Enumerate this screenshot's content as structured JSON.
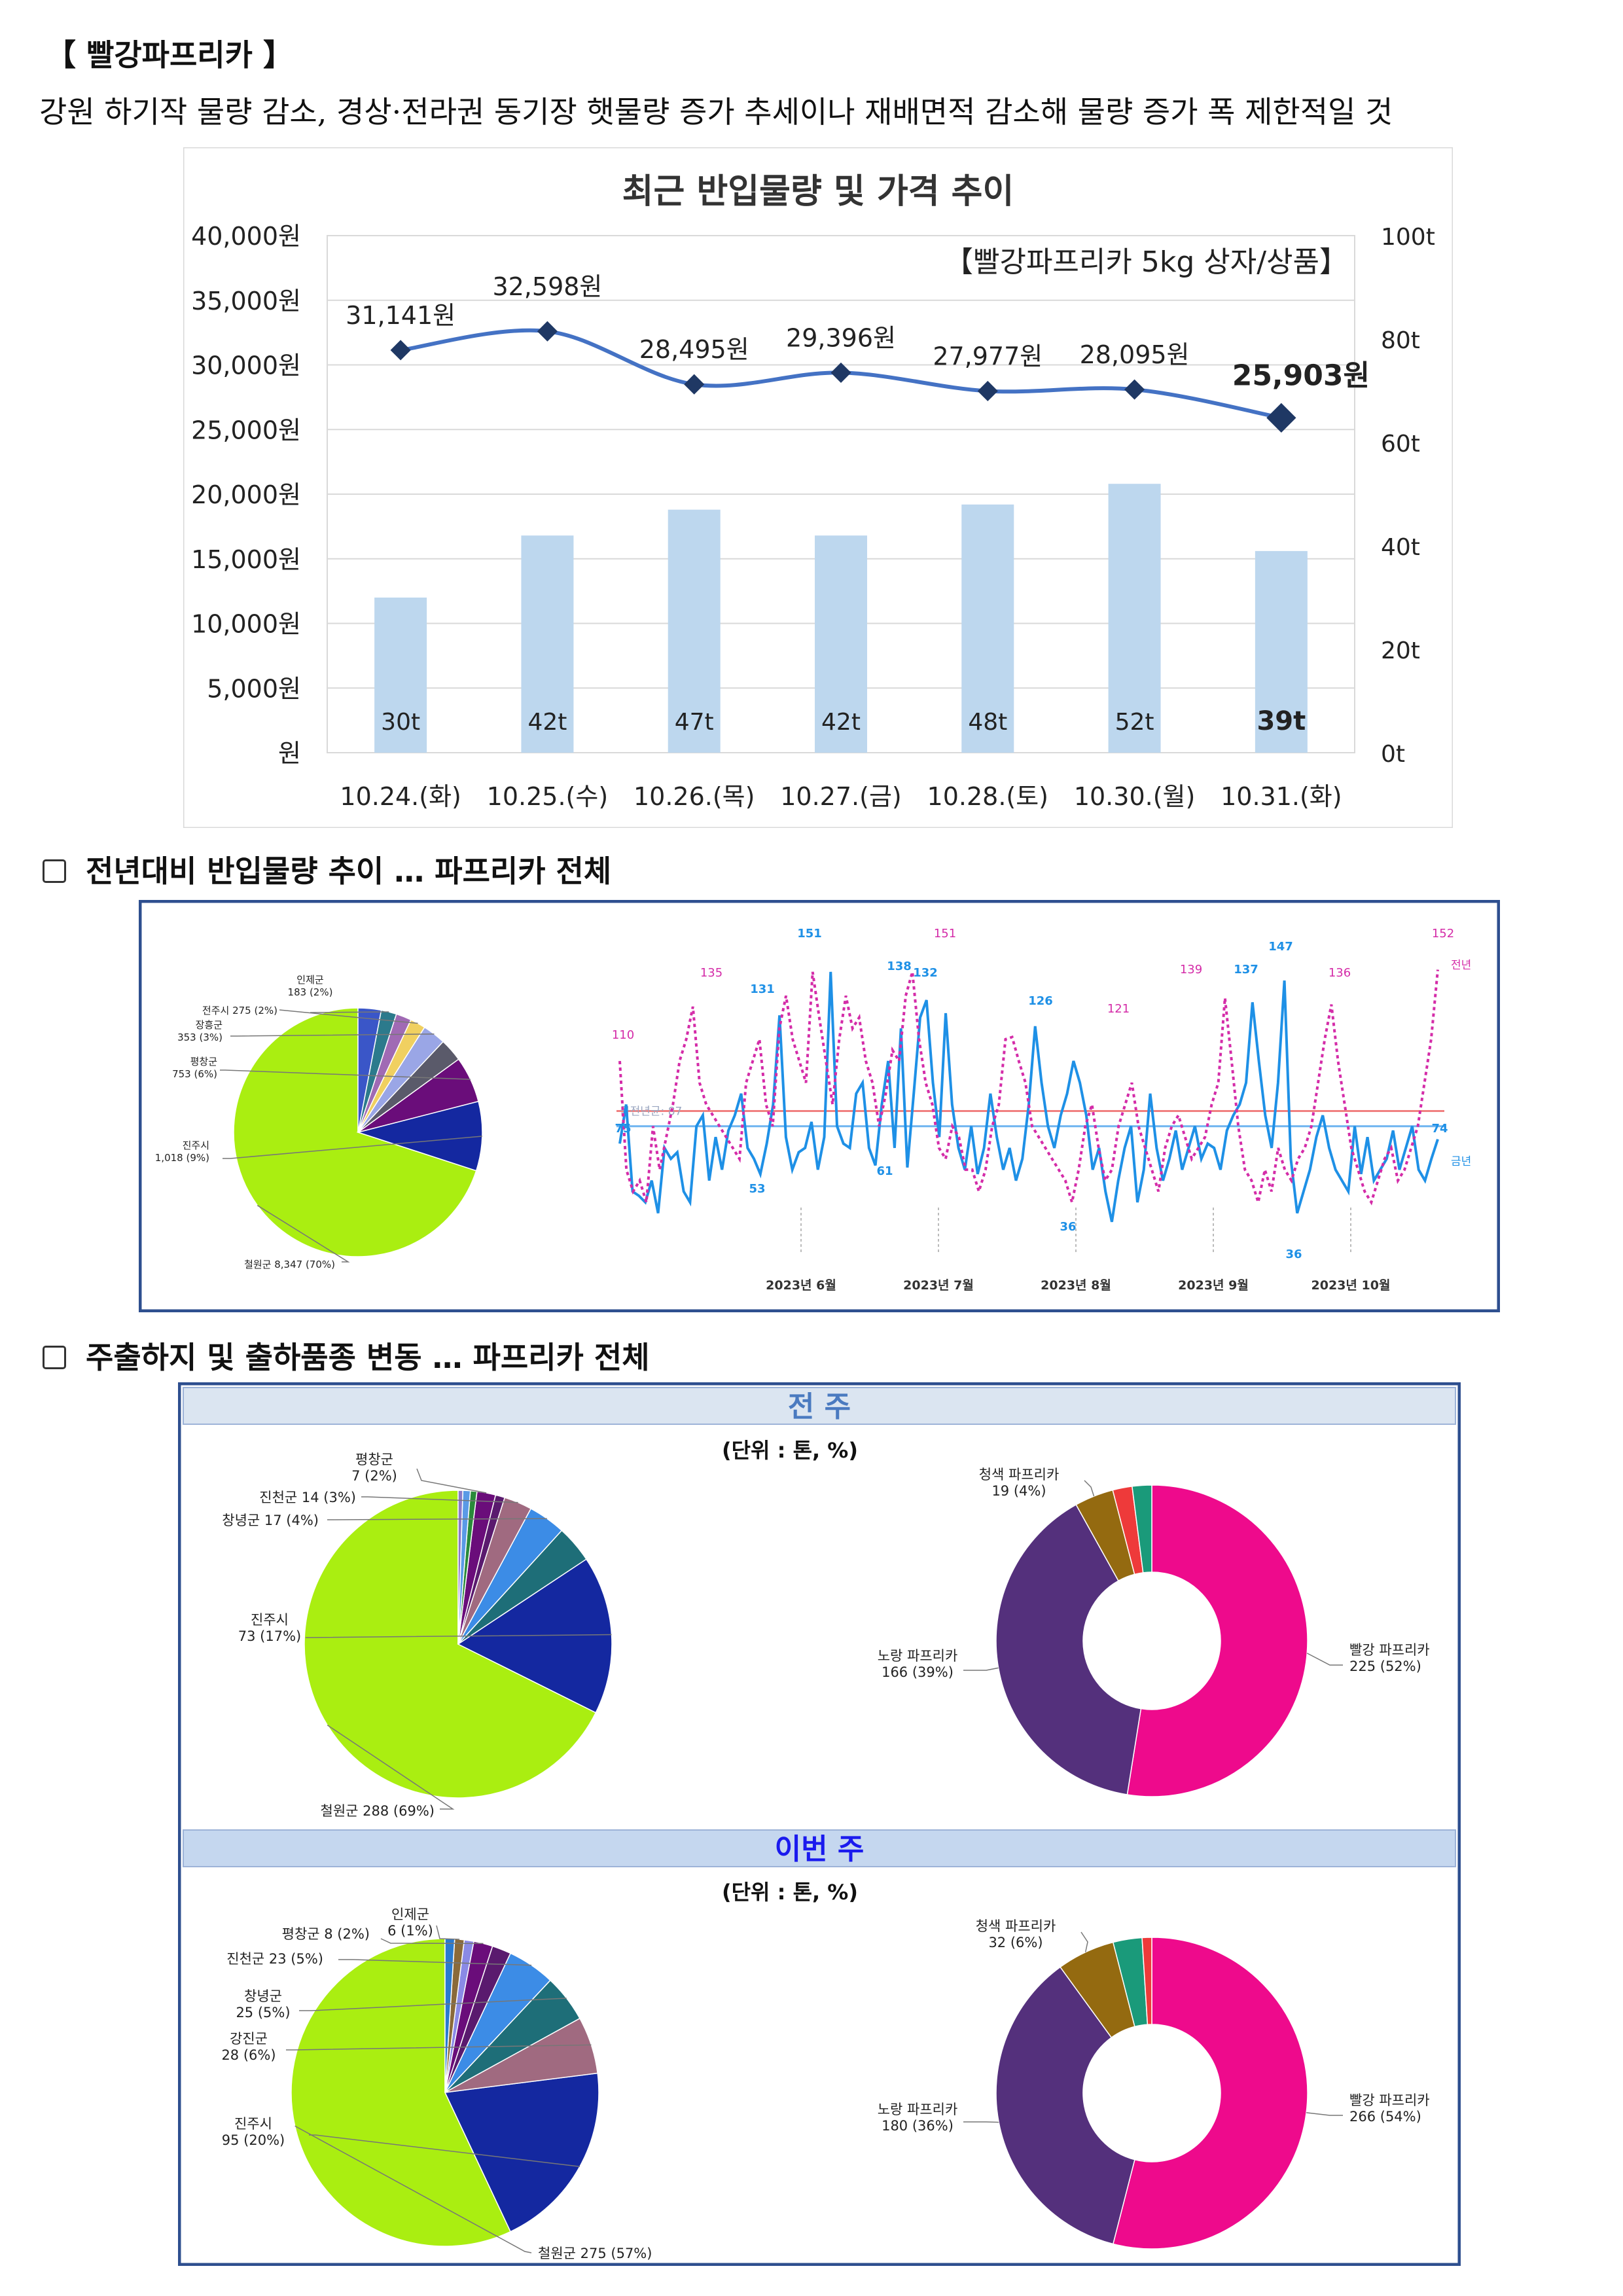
{
  "header": {
    "title": "【 빨강파프리카 】",
    "summary": "강원 하기작 물량 감소, 경상·전라권 동기장 햇물량 증가 추세이나 재배면적 감소해 물량 증가 폭 제한적일 것"
  },
  "chart_data": [
    {
      "type": "bar+line",
      "title": "최근 반입물량 및 가격 추이",
      "subtitle": "【빨강파프리카 5kg 상자/상품】",
      "categories": [
        "10.24.(화)",
        "10.25.(수)",
        "10.26.(목)",
        "10.27.(금)",
        "10.28.(토)",
        "10.30.(월)",
        "10.31.(화)"
      ],
      "series": [
        {
          "name": "",
          "kind": "bar",
          "axis": "right",
          "values": [
            30,
            42,
            47,
            42,
            48,
            52,
            39
          ],
          "labels": [
            "30t",
            "42t",
            "47t",
            "42t",
            "48t",
            "52t",
            "39t"
          ],
          "color": "#bdd7ee"
        },
        {
          "name": "",
          "kind": "line",
          "axis": "left",
          "values": [
            31141,
            32598,
            28495,
            29396,
            27977,
            28095,
            25903
          ],
          "labels": [
            "31,141원",
            "32,598원",
            "28,495원",
            "29,396원",
            "27,977원",
            "28,095원",
            "25,903원"
          ],
          "color": "#4472c4"
        }
      ],
      "y_left": {
        "range": [
          0,
          40000
        ],
        "ticks": [
          "원",
          "5,000원",
          "10,000원",
          "15,000원",
          "20,000원",
          "25,000원",
          "30,000원",
          "35,000원",
          "40,000원"
        ]
      },
      "y_right": {
        "range": [
          0,
          100
        ],
        "ticks": [
          "0t",
          "20t",
          "40t",
          "60t",
          "80t",
          "100t"
        ]
      },
      "grid": true
    },
    {
      "type": "pie",
      "section_title": "전년대비 반입물량 추이 … 파프리카 전체",
      "slices": [
        {
          "label": "철원군 8,347 (70%)",
          "value": 70,
          "color": "#aaee11"
        },
        {
          "label": "진주시 1,018 (9%)",
          "value": 9,
          "color": "#1428a0"
        },
        {
          "label": "평창군 753 (6%)",
          "value": 6,
          "color": "#6a0d7a"
        },
        {
          "label": "",
          "value": 3,
          "color": "#5a5a6a"
        },
        {
          "label": "장흥군 353 (3%)",
          "value": 3,
          "color": "#9aa6e6"
        },
        {
          "label": "전주시 275 (2%)",
          "value": 2,
          "color": "#f0d060"
        },
        {
          "label": "",
          "value": 2,
          "color": "#a06ab4"
        },
        {
          "label": "인제군 183 (2%)",
          "value": 2,
          "color": "#2c7a8c"
        },
        {
          "label": "",
          "value": 3,
          "color": "#3a56c8"
        }
      ]
    },
    {
      "type": "line",
      "x_ticks": [
        "2023년 6월",
        "2023년 7월",
        "2023년 8월",
        "2023년 9월",
        "2023년 10월"
      ],
      "series": [
        {
          "name": "금년",
          "color": "#1e90e6",
          "values": [
            72,
            90,
            50,
            48,
            45,
            55,
            40,
            70,
            65,
            68,
            50,
            45,
            80,
            85,
            55,
            75,
            60,
            78,
            85,
            95,
            70,
            65,
            58,
            72,
            90,
            131,
            75,
            60,
            68,
            70,
            82,
            60,
            75,
            151,
            80,
            72,
            70,
            95,
            100,
            70,
            62,
            90,
            110,
            70,
            125,
            61,
            95,
            130,
            138,
            100,
            75,
            132,
            90,
            70,
            60,
            80,
            58,
            70,
            95,
            75,
            60,
            70,
            55,
            65,
            90,
            126,
            100,
            80,
            70,
            85,
            95,
            110,
            100,
            85,
            60,
            70,
            50,
            36,
            55,
            70,
            80,
            45,
            60,
            95,
            70,
            55,
            65,
            78,
            60,
            70,
            80,
            65,
            72,
            70,
            60,
            78,
            85,
            90,
            100,
            137,
            110,
            85,
            70,
            100,
            147,
            65,
            40,
            50,
            60,
            75,
            85,
            70,
            60,
            55,
            50,
            80,
            58,
            75,
            55,
            60,
            65,
            78,
            60,
            70,
            80,
            60,
            55,
            65,
            74
          ]
        },
        {
          "name": "전년",
          "color": "#d42ca8",
          "dashed": true,
          "values": [
            110,
            60,
            50,
            55,
            45,
            80,
            60,
            75,
            90,
            110,
            120,
            135,
            100,
            90,
            85,
            80,
            75,
            70,
            65,
            100,
            110,
            120,
            90,
            80,
            125,
            140,
            120,
            110,
            100,
            151,
            130,
            110,
            90,
            120,
            140,
            125,
            130,
            110,
            100,
            80,
            95,
            115,
            110,
            140,
            151,
            120,
            100,
            90,
            70,
            65,
            80,
            75,
            60,
            60,
            50,
            60,
            80,
            90,
            120,
            121,
            110,
            100,
            80,
            75,
            70,
            65,
            60,
            55,
            45,
            60,
            80,
            90,
            70,
            55,
            60,
            80,
            90,
            100,
            80,
            70,
            60,
            50,
            70,
            80,
            85,
            75,
            65,
            70,
            75,
            90,
            100,
            139,
            110,
            80,
            60,
            55,
            45,
            60,
            50,
            70,
            60,
            55,
            65,
            70,
            80,
            100,
            120,
            136,
            110,
            90,
            70,
            60,
            50,
            45,
            55,
            65,
            70,
            55,
            60,
            70,
            80,
            100,
            120,
            152
          ]
        }
      ],
      "annotations": [
        "110",
        "135",
        "131",
        "151",
        "138",
        "132",
        "126",
        "151",
        "121",
        "139",
        "137",
        "147",
        "136",
        "152",
        "53",
        "61",
        "36",
        "36",
        "75",
        "74"
      ],
      "legend_current": "금년",
      "legend_previous": "전년",
      "avg_label_previous": "금전년균:",
      "avg_label_previous_value": "87"
    },
    {
      "type": "pie",
      "section_title": "주출하지 및 출하품종 변동 … 파프리카 전체",
      "week_label": "전 주",
      "unit": "(단위 : 톤, %)",
      "slices": [
        {
          "label": "철원군 288 (69%)",
          "value": 69,
          "color": "#aaee11"
        },
        {
          "label": "진주시 73 (17%)",
          "value": 17,
          "color": "#1428a0"
        },
        {
          "label": "",
          "value": 4,
          "color": "#1e6e78"
        },
        {
          "label": "창녕군 17 (4%)",
          "value": 4,
          "color": "#3c8ce6"
        },
        {
          "label": "진천군 14 (3%)",
          "value": 3,
          "color": "#a06a80"
        },
        {
          "label": "",
          "value": 1,
          "color": "#5a1a6e"
        },
        {
          "label": "평창군 7 (2%)",
          "value": 2,
          "color": "#6a0d7a"
        },
        {
          "label": "",
          "value": 0.7,
          "color": "#2a8a3a"
        },
        {
          "label": "",
          "value": 0.8,
          "color": "#5a9ae6"
        },
        {
          "label": "",
          "value": 0.5,
          "color": "#8a7ac8"
        }
      ]
    },
    {
      "type": "pie",
      "donut": true,
      "slices": [
        {
          "label": "빨강 파프리카 225 (52%)",
          "value": 52,
          "color": "#ee0a8c"
        },
        {
          "label": "노랑 파프리카 166 (39%)",
          "value": 39,
          "color": "#54307c"
        },
        {
          "label": "청색 파프리카 19 (4%)",
          "value": 4,
          "color": "#946a10"
        },
        {
          "label": "",
          "value": 2,
          "color": "#ee3a3a"
        },
        {
          "label": "",
          "value": 2,
          "color": "#1a9a7a"
        }
      ]
    },
    {
      "type": "pie",
      "week_label": "이번 주",
      "unit": "(단위 : 톤, %)",
      "slices": [
        {
          "label": "철원군 275 (57%)",
          "value": 57,
          "color": "#aaee11"
        },
        {
          "label": "진주시 95 (20%)",
          "value": 20,
          "color": "#1428a0"
        },
        {
          "label": "강진군 28 (6%)",
          "value": 6,
          "color": "#a06a80"
        },
        {
          "label": "창녕군 25 (5%)",
          "value": 5,
          "color": "#1e6e78"
        },
        {
          "label": "진천군 23 (5%)",
          "value": 5,
          "color": "#3c8ce6"
        },
        {
          "label": "",
          "value": 2,
          "color": "#5a1a6e"
        },
        {
          "label": "평창군 8 (2%)",
          "value": 2,
          "color": "#6a0d7a"
        },
        {
          "label": "",
          "value": 1,
          "color": "#8a8ae6"
        },
        {
          "label": "인제군 6 (1%)",
          "value": 1,
          "color": "#8a6a3a"
        },
        {
          "label": "",
          "value": 1,
          "color": "#2a7ad0"
        }
      ]
    },
    {
      "type": "pie",
      "donut": true,
      "slices": [
        {
          "label": "빨강 파프리카 266 (54%)",
          "value": 54,
          "color": "#ee0a8c"
        },
        {
          "label": "노랑 파프리카 180 (36%)",
          "value": 36,
          "color": "#54307c"
        },
        {
          "label": "청색 파프리카 32 (6%)",
          "value": 6,
          "color": "#946a10"
        },
        {
          "label": "",
          "value": 3,
          "color": "#1a9a7a"
        },
        {
          "label": "",
          "value": 1,
          "color": "#ee3a3a"
        }
      ]
    }
  ]
}
